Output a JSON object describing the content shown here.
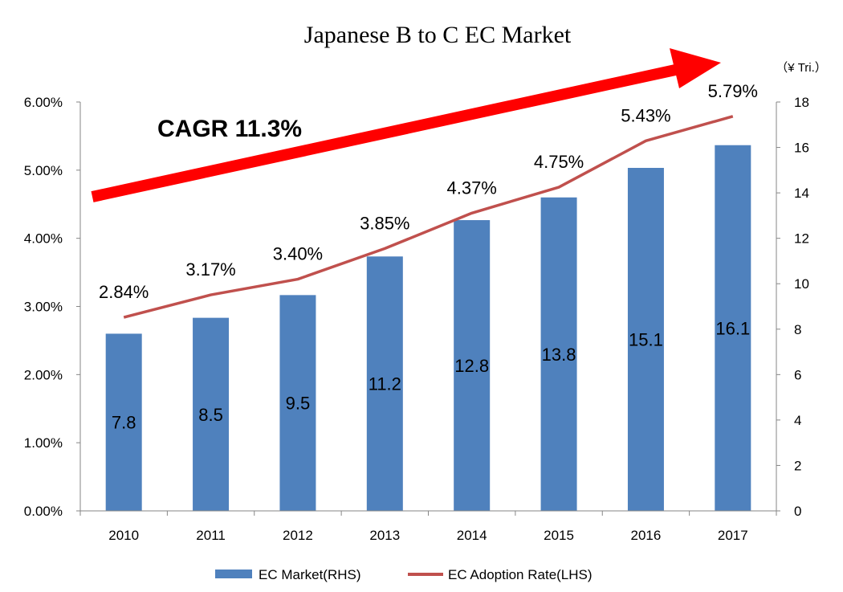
{
  "chart_data": {
    "type": "bar+line",
    "title": "Japanese B to C EC Market",
    "categories": [
      "2010",
      "2011",
      "2012",
      "2013",
      "2014",
      "2015",
      "2016",
      "2017"
    ],
    "series": [
      {
        "name": "EC Market(RHS)",
        "type": "bar",
        "axis": "right",
        "values": [
          7.8,
          8.5,
          9.5,
          11.2,
          12.8,
          13.8,
          15.1,
          16.1
        ],
        "labels": [
          "7.8",
          "8.5",
          "9.5",
          "11.2",
          "12.8",
          "13.8",
          "15.1",
          "16.1"
        ],
        "color": "#4f81bd"
      },
      {
        "name": "EC Adoption Rate(LHS)",
        "type": "line",
        "axis": "left",
        "values": [
          2.84,
          3.17,
          3.4,
          3.85,
          4.37,
          4.75,
          5.43,
          5.79
        ],
        "labels": [
          "2.84%",
          "3.17%",
          "3.40%",
          "3.85%",
          "4.37%",
          "4.75%",
          "5.43%",
          "5.79%"
        ],
        "color": "#c0504d"
      }
    ],
    "left_axis": {
      "ylim": [
        0,
        6
      ],
      "ticks": [
        0,
        1,
        2,
        3,
        4,
        5,
        6
      ],
      "tick_labels": [
        "0.00%",
        "1.00%",
        "2.00%",
        "3.00%",
        "4.00%",
        "5.00%",
        "6.00%"
      ]
    },
    "right_axis": {
      "unit": "（¥ Tri.）",
      "ylim": [
        0,
        18
      ],
      "ticks": [
        0,
        2,
        4,
        6,
        8,
        10,
        12,
        14,
        16,
        18
      ],
      "tick_labels": [
        "0",
        "2",
        "4",
        "6",
        "8",
        "10",
        "12",
        "14",
        "16",
        "18"
      ]
    },
    "annotation": {
      "text": "CAGR 11.3%",
      "arrow_color": "#ff0000"
    },
    "legend": {
      "position": "bottom",
      "entries": [
        "EC Market(RHS)",
        "EC Adoption Rate(LHS)"
      ]
    },
    "grid": false
  }
}
